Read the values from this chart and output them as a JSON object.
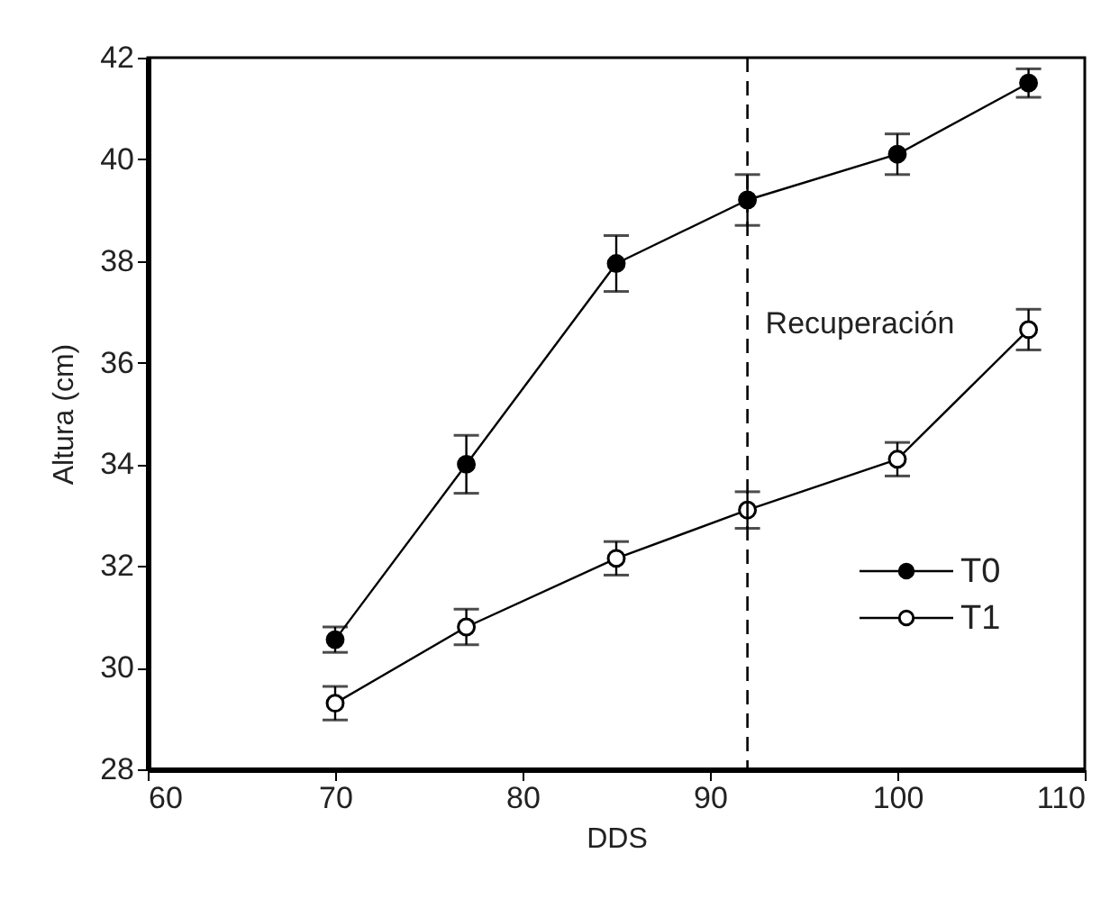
{
  "chart_data": {
    "type": "line",
    "xlabel": "DDS",
    "ylabel": "Altura (cm)",
    "xlim": [
      60,
      110
    ],
    "xticks": [
      60,
      70,
      80,
      90,
      100,
      110
    ],
    "ylim": [
      28,
      42
    ],
    "yticks": [
      28,
      30,
      32,
      34,
      36,
      38,
      40,
      42
    ],
    "x": [
      70,
      77,
      85,
      92,
      100,
      107
    ],
    "series": [
      {
        "name": "T0",
        "color": "#000000",
        "values": [
          30.55,
          34.0,
          37.95,
          39.2,
          40.1,
          41.5
        ],
        "errors": [
          0.25,
          0.57,
          0.55,
          0.5,
          0.4,
          0.28
        ]
      },
      {
        "name": "T1",
        "color": "#000000",
        "values": [
          29.3,
          30.8,
          32.15,
          33.1,
          34.1,
          36.65
        ],
        "errors": [
          0.33,
          0.35,
          0.33,
          0.36,
          0.33,
          0.4
        ]
      }
    ],
    "ref_lines": [
      {
        "axis": "x",
        "value": 92,
        "label": "Recuperación",
        "line_style": "dashed",
        "color": "#000000"
      }
    ],
    "marker": "circle",
    "legend": "bottom right",
    "grid": false
  }
}
